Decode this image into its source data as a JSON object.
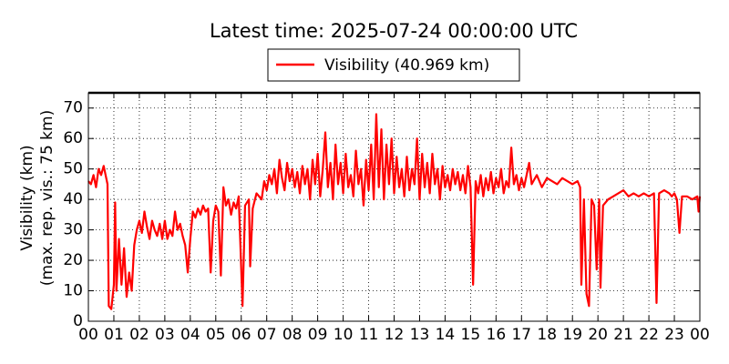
{
  "chart_data": {
    "type": "line",
    "title": "Latest time: 2025-07-24 00:00:00 UTC",
    "ylabel": [
      "Visibility (km)",
      "(max. rep. vis.: 75 km)"
    ],
    "x": [
      0,
      0.1,
      0.2,
      0.3,
      0.4,
      0.5,
      0.6,
      0.7,
      0.75,
      0.8,
      0.9,
      1.0,
      1.05,
      1.1,
      1.2,
      1.3,
      1.4,
      1.5,
      1.6,
      1.7,
      1.8,
      1.9,
      2.0,
      2.1,
      2.2,
      2.3,
      2.4,
      2.5,
      2.6,
      2.7,
      2.8,
      2.9,
      3.0,
      3.1,
      3.2,
      3.3,
      3.4,
      3.5,
      3.6,
      3.7,
      3.8,
      3.9,
      4.0,
      4.1,
      4.2,
      4.3,
      4.4,
      4.5,
      4.6,
      4.7,
      4.8,
      4.9,
      5.0,
      5.1,
      5.2,
      5.3,
      5.4,
      5.5,
      5.6,
      5.7,
      5.8,
      5.9,
      6.05,
      6.15,
      6.3,
      6.35,
      6.45,
      6.6,
      6.8,
      6.9,
      7.0,
      7.1,
      7.2,
      7.3,
      7.4,
      7.5,
      7.6,
      7.7,
      7.8,
      7.9,
      8.0,
      8.1,
      8.2,
      8.3,
      8.4,
      8.5,
      8.6,
      8.7,
      8.8,
      8.9,
      9.0,
      9.1,
      9.2,
      9.3,
      9.4,
      9.5,
      9.6,
      9.7,
      9.8,
      9.9,
      10.0,
      10.1,
      10.2,
      10.3,
      10.4,
      10.5,
      10.6,
      10.7,
      10.8,
      10.9,
      11.0,
      11.1,
      11.2,
      11.3,
      11.4,
      11.5,
      11.6,
      11.7,
      11.8,
      11.9,
      12.0,
      12.1,
      12.2,
      12.3,
      12.4,
      12.5,
      12.6,
      12.7,
      12.8,
      12.9,
      13.0,
      13.1,
      13.2,
      13.3,
      13.4,
      13.5,
      13.6,
      13.7,
      13.8,
      13.9,
      14.0,
      14.1,
      14.2,
      14.3,
      14.4,
      14.5,
      14.6,
      14.7,
      14.8,
      14.9,
      15.0,
      15.1,
      15.2,
      15.3,
      15.4,
      15.5,
      15.6,
      15.7,
      15.8,
      15.9,
      16.0,
      16.1,
      16.2,
      16.3,
      16.4,
      16.5,
      16.6,
      16.7,
      16.8,
      16.9,
      17.0,
      17.1,
      17.3,
      17.4,
      17.6,
      17.8,
      18.0,
      18.2,
      18.4,
      18.6,
      18.8,
      19.0,
      19.2,
      19.3,
      19.35,
      19.45,
      19.55,
      19.65,
      19.75,
      19.85,
      19.95,
      20.05,
      20.1,
      20.2,
      20.4,
      20.6,
      20.8,
      21.0,
      21.2,
      21.4,
      21.6,
      21.8,
      22.0,
      22.2,
      22.3,
      22.4,
      22.6,
      22.8,
      22.9,
      23.0,
      23.1,
      23.2,
      23.3,
      23.5,
      23.7,
      23.9,
      23.95,
      24
    ],
    "series": [
      {
        "name": "Visibility (40.969 km)",
        "color": "#ff0000",
        "values": [
          46,
          45,
          48,
          44,
          50,
          48,
          51,
          47,
          45,
          5,
          4,
          12,
          39,
          10,
          27,
          12,
          24,
          8,
          16,
          10,
          25,
          30,
          33,
          29,
          36,
          31,
          27,
          33,
          30,
          28,
          32,
          27,
          33,
          27,
          30,
          28,
          36,
          30,
          32,
          28,
          25,
          16,
          27,
          36,
          34,
          37,
          35,
          38,
          36,
          37,
          16,
          33,
          38,
          36,
          15,
          44,
          38,
          40,
          35,
          39,
          37,
          41,
          5,
          38,
          40,
          18,
          37,
          42,
          40,
          46,
          43,
          48,
          45,
          50,
          42,
          53,
          47,
          43,
          52,
          46,
          50,
          44,
          49,
          42,
          51,
          45,
          50,
          40,
          53,
          45,
          55,
          41,
          50,
          62,
          44,
          52,
          40,
          58,
          45,
          52,
          42,
          55,
          44,
          48,
          41,
          56,
          45,
          50,
          38,
          53,
          43,
          58,
          40,
          68,
          44,
          63,
          40,
          58,
          45,
          60,
          42,
          54,
          44,
          50,
          41,
          54,
          43,
          50,
          45,
          60,
          40,
          55,
          44,
          52,
          42,
          55,
          45,
          50,
          40,
          51,
          44,
          48,
          43,
          50,
          45,
          49,
          43,
          48,
          42,
          51,
          44,
          12,
          46,
          42,
          48,
          41,
          47,
          43,
          49,
          42,
          47,
          44,
          50,
          42,
          46,
          44,
          57,
          45,
          48,
          43,
          47,
          44,
          52,
          45,
          48,
          44,
          47,
          46,
          45,
          47,
          46,
          45,
          46,
          44,
          12,
          40,
          9,
          5,
          40,
          38,
          17,
          40,
          11,
          38,
          40,
          41,
          42,
          43,
          41,
          42,
          41,
          42,
          41,
          42,
          6,
          42,
          43,
          42,
          41,
          42,
          40,
          29,
          41,
          41,
          40,
          41,
          36,
          41
        ]
      }
    ],
    "xlim": [
      0,
      24
    ],
    "xticks": [
      {
        "value": 0,
        "label": "00"
      },
      {
        "value": 1,
        "label": "01"
      },
      {
        "value": 2,
        "label": "02"
      },
      {
        "value": 3,
        "label": "03"
      },
      {
        "value": 4,
        "label": "04"
      },
      {
        "value": 5,
        "label": "05"
      },
      {
        "value": 6,
        "label": "06"
      },
      {
        "value": 7,
        "label": "07"
      },
      {
        "value": 8,
        "label": "08"
      },
      {
        "value": 9,
        "label": "09"
      },
      {
        "value": 10,
        "label": "10"
      },
      {
        "value": 11,
        "label": "11"
      },
      {
        "value": 12,
        "label": "12"
      },
      {
        "value": 13,
        "label": "13"
      },
      {
        "value": 14,
        "label": "14"
      },
      {
        "value": 15,
        "label": "15"
      },
      {
        "value": 16,
        "label": "16"
      },
      {
        "value": 17,
        "label": "17"
      },
      {
        "value": 18,
        "label": "18"
      },
      {
        "value": 19,
        "label": "19"
      },
      {
        "value": 20,
        "label": "20"
      },
      {
        "value": 21,
        "label": "21"
      },
      {
        "value": 22,
        "label": "22"
      },
      {
        "value": 23,
        "label": "23"
      },
      {
        "value": 24,
        "label": "00"
      }
    ],
    "ylim": [
      0,
      75
    ],
    "yticks": [
      0,
      10,
      20,
      30,
      40,
      50,
      60,
      70
    ],
    "grid": true
  }
}
